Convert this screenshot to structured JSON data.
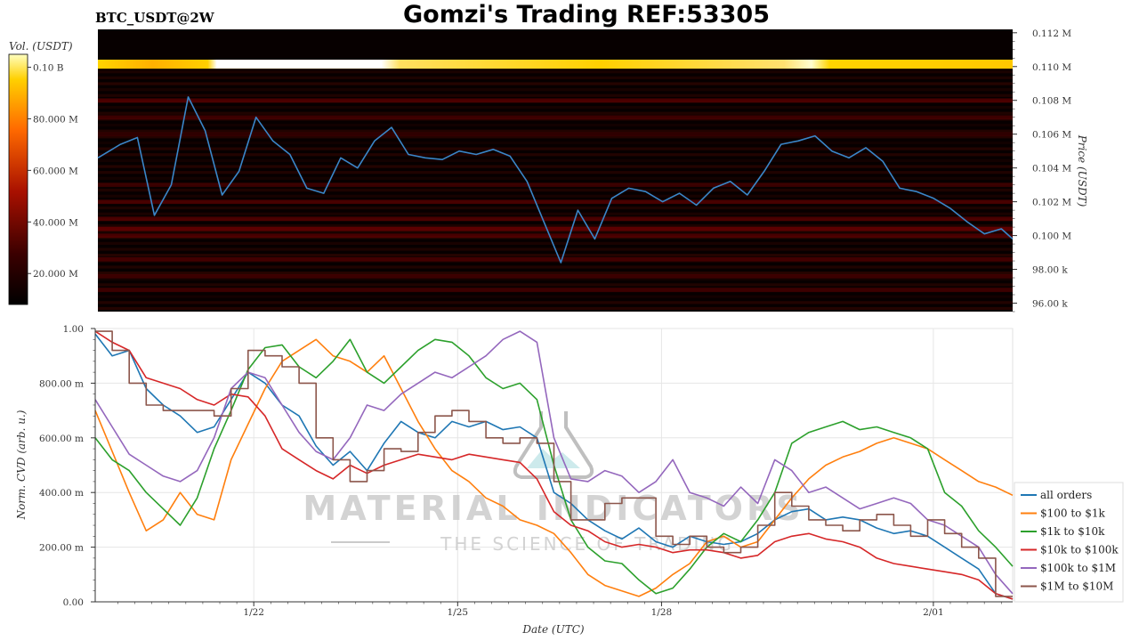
{
  "header": {
    "symbol": "BTC_USDT@2W",
    "title": "Gomzi's Trading REF:53305"
  },
  "colorbar": {
    "label": "Vol. (USDT)",
    "ticks": [
      "0.10 B",
      "80.000 M",
      "60.000 M",
      "40.000 M",
      "20.000 M"
    ],
    "tick_values": [
      100,
      80,
      60,
      40,
      20
    ],
    "range_musdt": [
      8,
      105
    ]
  },
  "watermark": {
    "title": "MATERIAL INDICATORS",
    "subtitle": "THE SCIENCE OF TRADING"
  },
  "colors": {
    "price_line": "#3a86c8",
    "all_orders": "#1f77b4",
    "usd100_1k": "#ff7f0e",
    "usd1k_10k": "#2ca02c",
    "usd10k_100k": "#d62728",
    "usd100k_1m": "#9467bd",
    "usd1m_10m": "#8c564b"
  },
  "chart_data": [
    {
      "type": "heatmap",
      "title": "BTC_USDT@2W",
      "ylabel": "Price (USDT)",
      "y_axis_side": "right",
      "ylim": [
        95.5,
        112.2
      ],
      "y_unit": "k USDT",
      "y_ticks": [
        112,
        110,
        108,
        106,
        104,
        102,
        100,
        98,
        96
      ],
      "y_tick_labels": [
        "0.112 M",
        "0.110 M",
        "0.108 M",
        "0.106 M",
        "0.104 M",
        "0.102 M",
        "0.100 M",
        "98.00 k",
        "96.00 k"
      ],
      "x_start": "2025-01-19T16:00",
      "x_end": "2025-02-02T04:00",
      "liquidity_bands": [
        {
          "price": 110.0,
          "volume_musdt": 100
        },
        {
          "price": 108.0,
          "volume_musdt": 30
        },
        {
          "price": 107.0,
          "volume_musdt": 25
        },
        {
          "price": 106.0,
          "volume_musdt": 18
        },
        {
          "price": 103.0,
          "volume_musdt": 20
        },
        {
          "price": 102.0,
          "volume_musdt": 28
        },
        {
          "price": 101.0,
          "volume_musdt": 30
        },
        {
          "price": 100.4,
          "volume_musdt": 45
        },
        {
          "price": 100.0,
          "volume_musdt": 32
        },
        {
          "price": 98.6,
          "volume_musdt": 28
        },
        {
          "price": 97.6,
          "volume_musdt": 25
        },
        {
          "price": 96.8,
          "volume_musdt": 22
        }
      ],
      "series": [
        {
          "name": "BTC price",
          "x": [
            "2025-01-19T16:00",
            "2025-01-20T00:00",
            "2025-01-20T06:00",
            "2025-01-20T12:00",
            "2025-01-20T18:00",
            "2025-01-21T00:00",
            "2025-01-21T06:00",
            "2025-01-21T12:00",
            "2025-01-21T18:00",
            "2025-01-22T00:00",
            "2025-01-22T06:00",
            "2025-01-22T12:00",
            "2025-01-22T18:00",
            "2025-01-23T00:00",
            "2025-01-23T06:00",
            "2025-01-23T12:00",
            "2025-01-23T18:00",
            "2025-01-24T00:00",
            "2025-01-24T06:00",
            "2025-01-24T12:00",
            "2025-01-24T18:00",
            "2025-01-25T00:00",
            "2025-01-25T06:00",
            "2025-01-25T12:00",
            "2025-01-25T18:00",
            "2025-01-26T00:00",
            "2025-01-26T06:00",
            "2025-01-26T12:00",
            "2025-01-26T18:00",
            "2025-01-27T00:00",
            "2025-01-27T06:00",
            "2025-01-27T12:00",
            "2025-01-27T18:00",
            "2025-01-28T00:00",
            "2025-01-28T06:00",
            "2025-01-28T12:00",
            "2025-01-28T18:00",
            "2025-01-29T00:00",
            "2025-01-29T06:00",
            "2025-01-29T12:00",
            "2025-01-29T18:00",
            "2025-01-30T00:00",
            "2025-01-30T06:00",
            "2025-01-30T12:00",
            "2025-01-30T18:00",
            "2025-01-31T00:00",
            "2025-01-31T06:00",
            "2025-01-31T12:00",
            "2025-01-31T18:00",
            "2025-02-01T00:00",
            "2025-02-01T06:00",
            "2025-02-01T12:00",
            "2025-02-01T18:00",
            "2025-02-02T00:00",
            "2025-02-02T04:00"
          ],
          "values": [
            104.6,
            105.4,
            105.8,
            101.2,
            103.0,
            108.2,
            106.2,
            102.4,
            103.8,
            107.0,
            105.6,
            104.8,
            102.8,
            102.5,
            104.6,
            104.0,
            105.6,
            106.4,
            104.8,
            104.6,
            104.5,
            105.0,
            104.8,
            105.1,
            104.7,
            103.2,
            100.8,
            98.4,
            101.5,
            99.8,
            102.2,
            102.8,
            102.6,
            102.0,
            102.5,
            101.8,
            102.8,
            103.2,
            102.4,
            103.8,
            105.4,
            105.6,
            105.9,
            105.0,
            104.6,
            105.2,
            104.4,
            102.8,
            102.6,
            102.2,
            101.6,
            100.8,
            100.1,
            100.4,
            99.8
          ]
        }
      ]
    },
    {
      "type": "line",
      "xlabel": "Date (UTC)",
      "ylabel": "Norm. CVD (arb. u.)",
      "ylim": [
        0,
        1
      ],
      "y_ticks": [
        0,
        0.2,
        0.4,
        0.6,
        0.8,
        1.0
      ],
      "y_tick_labels": [
        "0.00",
        "200.00 m",
        "400.00 m",
        "600.00 m",
        "800.00 m",
        "1.00"
      ],
      "x_start": "2025-01-19T16:00",
      "x_end": "2025-02-02T04:00",
      "x_ticks": [
        "2025-01-22",
        "2025-01-25",
        "2025-01-28",
        "2025-02-01"
      ],
      "x_tick_labels": [
        "1/22",
        "1/25",
        "1/28",
        "2/01"
      ],
      "grid": true,
      "legend_position": "bottom-right",
      "series": [
        {
          "name": "all orders",
          "values": [
            0.98,
            0.9,
            0.92,
            0.78,
            0.72,
            0.68,
            0.62,
            0.64,
            0.74,
            0.84,
            0.8,
            0.72,
            0.68,
            0.57,
            0.5,
            0.55,
            0.48,
            0.58,
            0.66,
            0.62,
            0.6,
            0.66,
            0.64,
            0.66,
            0.63,
            0.64,
            0.6,
            0.4,
            0.36,
            0.3,
            0.26,
            0.23,
            0.27,
            0.22,
            0.2,
            0.24,
            0.22,
            0.21,
            0.22,
            0.25,
            0.3,
            0.33,
            0.34,
            0.3,
            0.31,
            0.3,
            0.27,
            0.25,
            0.26,
            0.24,
            0.2,
            0.16,
            0.12,
            0.03,
            0.01
          ]
        },
        {
          "name": "$100 to $1k",
          "values": [
            0.7,
            0.55,
            0.4,
            0.26,
            0.3,
            0.4,
            0.32,
            0.3,
            0.52,
            0.65,
            0.78,
            0.88,
            0.92,
            0.96,
            0.9,
            0.88,
            0.84,
            0.9,
            0.78,
            0.66,
            0.56,
            0.48,
            0.44,
            0.38,
            0.35,
            0.3,
            0.28,
            0.25,
            0.18,
            0.1,
            0.06,
            0.04,
            0.02,
            0.05,
            0.1,
            0.14,
            0.22,
            0.24,
            0.2,
            0.22,
            0.3,
            0.38,
            0.45,
            0.5,
            0.53,
            0.55,
            0.58,
            0.6,
            0.58,
            0.56,
            0.52,
            0.48,
            0.44,
            0.42,
            0.39
          ]
        },
        {
          "name": "$1k to $10k",
          "values": [
            0.6,
            0.52,
            0.48,
            0.4,
            0.34,
            0.28,
            0.38,
            0.56,
            0.7,
            0.85,
            0.93,
            0.94,
            0.86,
            0.82,
            0.88,
            0.96,
            0.84,
            0.8,
            0.86,
            0.92,
            0.96,
            0.95,
            0.9,
            0.82,
            0.78,
            0.8,
            0.74,
            0.5,
            0.3,
            0.2,
            0.15,
            0.14,
            0.08,
            0.03,
            0.05,
            0.12,
            0.2,
            0.25,
            0.22,
            0.3,
            0.4,
            0.58,
            0.62,
            0.64,
            0.66,
            0.63,
            0.64,
            0.62,
            0.6,
            0.56,
            0.4,
            0.35,
            0.26,
            0.2,
            0.13
          ]
        },
        {
          "name": "$10k to $100k",
          "values": [
            0.99,
            0.95,
            0.92,
            0.82,
            0.8,
            0.78,
            0.74,
            0.72,
            0.76,
            0.75,
            0.68,
            0.56,
            0.52,
            0.48,
            0.45,
            0.5,
            0.47,
            0.5,
            0.52,
            0.54,
            0.53,
            0.52,
            0.54,
            0.53,
            0.52,
            0.51,
            0.45,
            0.33,
            0.28,
            0.26,
            0.22,
            0.2,
            0.21,
            0.2,
            0.18,
            0.19,
            0.19,
            0.18,
            0.16,
            0.17,
            0.22,
            0.24,
            0.25,
            0.23,
            0.22,
            0.2,
            0.16,
            0.14,
            0.13,
            0.12,
            0.11,
            0.1,
            0.08,
            0.03,
            0.01
          ]
        },
        {
          "name": "$100k to $1M",
          "values": [
            0.74,
            0.64,
            0.54,
            0.5,
            0.46,
            0.44,
            0.48,
            0.6,
            0.78,
            0.84,
            0.82,
            0.72,
            0.62,
            0.55,
            0.52,
            0.6,
            0.72,
            0.7,
            0.76,
            0.8,
            0.84,
            0.82,
            0.86,
            0.9,
            0.96,
            0.99,
            0.95,
            0.6,
            0.45,
            0.44,
            0.48,
            0.46,
            0.4,
            0.44,
            0.52,
            0.4,
            0.38,
            0.35,
            0.42,
            0.36,
            0.52,
            0.48,
            0.4,
            0.42,
            0.38,
            0.34,
            0.36,
            0.38,
            0.36,
            0.3,
            0.28,
            0.24,
            0.2,
            0.1,
            0.03
          ]
        },
        {
          "name": "$1M to $10M",
          "values": [
            0.99,
            0.92,
            0.8,
            0.72,
            0.7,
            0.7,
            0.7,
            0.68,
            0.78,
            0.92,
            0.9,
            0.86,
            0.8,
            0.6,
            0.52,
            0.44,
            0.48,
            0.56,
            0.55,
            0.62,
            0.68,
            0.7,
            0.66,
            0.6,
            0.58,
            0.6,
            0.58,
            0.44,
            0.3,
            0.3,
            0.36,
            0.38,
            0.38,
            0.24,
            0.21,
            0.24,
            0.2,
            0.18,
            0.2,
            0.28,
            0.4,
            0.35,
            0.3,
            0.28,
            0.26,
            0.3,
            0.32,
            0.28,
            0.24,
            0.3,
            0.25,
            0.2,
            0.16,
            0.02,
            0.02
          ]
        }
      ]
    }
  ]
}
